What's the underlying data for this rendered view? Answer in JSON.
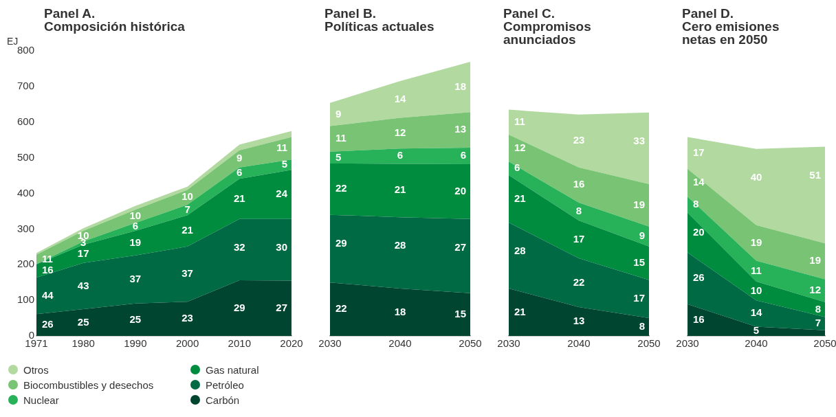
{
  "chart_data": [
    {
      "type": "area",
      "title": "Panel A.\nComposición histórica",
      "ylabel": "EJ",
      "stacked": true,
      "legend": "bottom",
      "grid": false,
      "data_labels": false,
      "x": [
        1971,
        1980,
        1990,
        2000,
        2010,
        2020
      ],
      "xlim": [
        1971,
        2020
      ],
      "xticks": [
        1971,
        1980,
        1990,
        2000,
        2010,
        2020
      ],
      "ylim": [
        0,
        800
      ],
      "yticks": [
        0,
        100,
        200,
        300,
        400,
        500,
        600,
        700,
        800
      ],
      "series": [
        {
          "name": "Carbón",
          "color": "#00452f",
          "values": [
            61,
            75,
            91,
            96,
            156,
            155
          ]
        },
        {
          "name": "Petróleo",
          "color": "#006a45",
          "values": [
            103,
            130,
            135,
            155,
            172,
            173
          ]
        },
        {
          "name": "Gas natural",
          "color": "#008c3e",
          "values": [
            37,
            51,
            69,
            88,
            113,
            138
          ]
        },
        {
          "name": "Nuclear",
          "color": "#27b159",
          "values": [
            1,
            9,
            22,
            29,
            32,
            29
          ]
        },
        {
          "name": "Biocombustibles y desechos",
          "color": "#79c374",
          "values": [
            26,
            30,
            37,
            42,
            48,
            63
          ]
        },
        {
          "name": "Otros",
          "color": "#b2d9a0",
          "values": [
            5,
            7,
            11,
            9,
            16,
            17
          ]
        }
      ],
      "annotations": [
        {
          "text": "26",
          "x": 1971,
          "y": 61
        },
        {
          "text": "44",
          "x": 1971,
          "y": 164
        },
        {
          "text": "16",
          "x": 1971,
          "y": 201
        },
        {
          "text": "11",
          "x": 1971,
          "y": 228
        },
        {
          "text": "25",
          "x": 1980,
          "y": 75
        },
        {
          "text": "43",
          "x": 1980,
          "y": 205
        },
        {
          "text": "17",
          "x": 1980,
          "y": 256
        },
        {
          "text": "3",
          "x": 1980,
          "y": 265
        },
        {
          "text": "10",
          "x": 1980,
          "y": 295
        },
        {
          "text": "25",
          "x": 1990,
          "y": 91
        },
        {
          "text": "37",
          "x": 1990,
          "y": 226
        },
        {
          "text": "19",
          "x": 1990,
          "y": 295
        },
        {
          "text": "6",
          "x": 1990,
          "y": 317
        },
        {
          "text": "10",
          "x": 1990,
          "y": 354
        },
        {
          "text": "23",
          "x": 2000,
          "y": 96
        },
        {
          "text": "37",
          "x": 2000,
          "y": 251
        },
        {
          "text": "21",
          "x": 2000,
          "y": 339
        },
        {
          "text": "7",
          "x": 2000,
          "y": 368
        },
        {
          "text": "10",
          "x": 2000,
          "y": 410
        },
        {
          "text": "29",
          "x": 2010,
          "y": 156
        },
        {
          "text": "32",
          "x": 2010,
          "y": 328
        },
        {
          "text": "21",
          "x": 2010,
          "y": 441
        },
        {
          "text": "6",
          "x": 2010,
          "y": 473
        },
        {
          "text": "9",
          "x": 2010,
          "y": 521
        },
        {
          "text": "27",
          "x": 2020,
          "y": 155
        },
        {
          "text": "30",
          "x": 2020,
          "y": 328
        },
        {
          "text": "24",
          "x": 2020,
          "y": 466
        },
        {
          "text": "5",
          "x": 2020,
          "y": 495
        },
        {
          "text": "11",
          "x": 2020,
          "y": 558
        }
      ]
    },
    {
      "type": "area",
      "title": "Panel B.\nPolíticas actuales",
      "stacked": true,
      "grid": false,
      "tick_labels": "x",
      "x": [
        2030,
        2040,
        2050
      ],
      "xlim": [
        2030,
        2050
      ],
      "xticks": [
        2030,
        2040,
        2050
      ],
      "ylim": [
        0,
        800
      ],
      "yticks": [
        0,
        100,
        200,
        300,
        400,
        500,
        600,
        700,
        800
      ],
      "series": [
        {
          "color": "#00452f",
          "values": [
            150,
            133,
            120
          ]
        },
        {
          "color": "#006a45",
          "values": [
            190,
            200,
            208
          ]
        },
        {
          "color": "#008c3e",
          "values": [
            144,
            150,
            154
          ]
        },
        {
          "color": "#27b159",
          "values": [
            33,
            43,
            46
          ]
        },
        {
          "color": "#79c374",
          "values": [
            72,
            86,
            100
          ]
        },
        {
          "color": "#b2d9a0",
          "values": [
            65,
            103,
            141
          ]
        }
      ],
      "annotations": [
        {
          "text": "22",
          "x": 2030,
          "y": 150
        },
        {
          "text": "29",
          "x": 2030,
          "y": 340
        },
        {
          "text": "22",
          "x": 2030,
          "y": 484
        },
        {
          "text": "5",
          "x": 2030,
          "y": 517
        },
        {
          "text": "11",
          "x": 2030,
          "y": 589
        },
        {
          "text": "9",
          "x": 2030,
          "y": 654
        },
        {
          "text": "18",
          "x": 2040,
          "y": 133
        },
        {
          "text": "28",
          "x": 2040,
          "y": 333
        },
        {
          "text": "21",
          "x": 2040,
          "y": 483
        },
        {
          "text": "6",
          "x": 2040,
          "y": 526
        },
        {
          "text": "12",
          "x": 2040,
          "y": 612
        },
        {
          "text": "14",
          "x": 2040,
          "y": 715
        },
        {
          "text": "15",
          "x": 2050,
          "y": 120
        },
        {
          "text": "27",
          "x": 2050,
          "y": 328
        },
        {
          "text": "20",
          "x": 2050,
          "y": 482
        },
        {
          "text": "6",
          "x": 2050,
          "y": 528
        },
        {
          "text": "13",
          "x": 2050,
          "y": 628
        },
        {
          "text": "18",
          "x": 2050,
          "y": 769
        }
      ]
    },
    {
      "type": "area",
      "title": "Panel C.\nCompromisos\nanunciados",
      "stacked": true,
      "grid": false,
      "tick_labels": "x",
      "x": [
        2030,
        2040,
        2050
      ],
      "xlim": [
        2030,
        2050
      ],
      "xticks": [
        2030,
        2040,
        2050
      ],
      "ylim": [
        0,
        800
      ],
      "yticks": [
        0,
        100,
        200,
        300,
        400,
        500,
        600,
        700,
        800
      ],
      "series": [
        {
          "color": "#00452f",
          "values": [
            133,
            81,
            50
          ]
        },
        {
          "color": "#006a45",
          "values": [
            185,
            137,
            107
          ]
        },
        {
          "color": "#008c3e",
          "values": [
            133,
            106,
            94
          ]
        },
        {
          "color": "#27b159",
          "values": [
            38,
            50,
            56
          ]
        },
        {
          "color": "#79c374",
          "values": [
            76,
            99,
            119
          ]
        },
        {
          "color": "#b2d9a0",
          "values": [
            70,
            148,
            201
          ]
        }
      ],
      "annotations": [
        {
          "text": "21",
          "x": 2030,
          "y": 133
        },
        {
          "text": "28",
          "x": 2030,
          "y": 318
        },
        {
          "text": "21",
          "x": 2030,
          "y": 451
        },
        {
          "text": "6",
          "x": 2030,
          "y": 489
        },
        {
          "text": "12",
          "x": 2030,
          "y": 565
        },
        {
          "text": "11",
          "x": 2030,
          "y": 635
        },
        {
          "text": "13",
          "x": 2040,
          "y": 81
        },
        {
          "text": "22",
          "x": 2040,
          "y": 218
        },
        {
          "text": "17",
          "x": 2040,
          "y": 324
        },
        {
          "text": "8",
          "x": 2040,
          "y": 374
        },
        {
          "text": "16",
          "x": 2040,
          "y": 473
        },
        {
          "text": "23",
          "x": 2040,
          "y": 621
        },
        {
          "text": "8",
          "x": 2050,
          "y": 50
        },
        {
          "text": "17",
          "x": 2050,
          "y": 157
        },
        {
          "text": "15",
          "x": 2050,
          "y": 251
        },
        {
          "text": "9",
          "x": 2050,
          "y": 307
        },
        {
          "text": "19",
          "x": 2050,
          "y": 426
        },
        {
          "text": "33",
          "x": 2050,
          "y": 627
        }
      ]
    },
    {
      "type": "area",
      "title": "Panel D.\nCero emisiones\nnetas en 2050",
      "stacked": true,
      "grid": false,
      "tick_labels": "x",
      "x": [
        2030,
        2040,
        2050
      ],
      "xlim": [
        2030,
        2050
      ],
      "xticks": [
        2030,
        2040,
        2050
      ],
      "ylim": [
        0,
        800
      ],
      "yticks": [
        0,
        100,
        200,
        300,
        400,
        500,
        600,
        700,
        800
      ],
      "series": [
        {
          "color": "#00452f",
          "values": [
            89,
            26,
            16
          ]
        },
        {
          "color": "#006a45",
          "values": [
            145,
            74,
            37
          ]
        },
        {
          "color": "#008c3e",
          "values": [
            112,
            53,
            42
          ]
        },
        {
          "color": "#27b159",
          "values": [
            45,
            58,
            64
          ]
        },
        {
          "color": "#79c374",
          "values": [
            78,
            100,
            101
          ]
        },
        {
          "color": "#b2d9a0",
          "values": [
            89,
            214,
            271
          ]
        }
      ],
      "annotations": [
        {
          "text": "16",
          "x": 2030,
          "y": 89
        },
        {
          "text": "26",
          "x": 2030,
          "y": 234
        },
        {
          "text": "20",
          "x": 2030,
          "y": 346
        },
        {
          "text": "8",
          "x": 2030,
          "y": 391
        },
        {
          "text": "14",
          "x": 2030,
          "y": 469
        },
        {
          "text": "17",
          "x": 2030,
          "y": 558
        },
        {
          "text": "5",
          "x": 2040,
          "y": 26
        },
        {
          "text": "14",
          "x": 2040,
          "y": 100
        },
        {
          "text": "10",
          "x": 2040,
          "y": 153
        },
        {
          "text": "11",
          "x": 2040,
          "y": 211
        },
        {
          "text": "19",
          "x": 2040,
          "y": 311
        },
        {
          "text": "40",
          "x": 2040,
          "y": 525
        },
        {
          "text": "7",
          "x": 2050,
          "y": 53
        },
        {
          "text": "8",
          "x": 2050,
          "y": 95
        },
        {
          "text": "12",
          "x": 2050,
          "y": 159
        },
        {
          "text": "19",
          "x": 2050,
          "y": 260
        },
        {
          "text": "51",
          "x": 2050,
          "y": 531
        }
      ]
    }
  ]
}
